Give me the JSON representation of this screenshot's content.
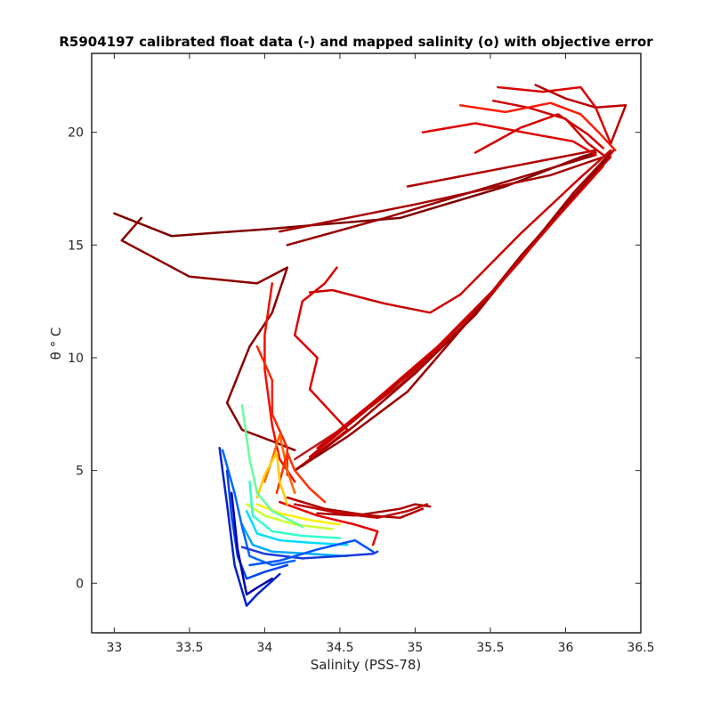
{
  "chart_data": {
    "type": "line",
    "title": "R5904197 calibrated float data (-) and mapped salinity (o) with objective error",
    "xlabel": "Salinity (PSS-78)",
    "ylabel": "θ ° C",
    "xlim": [
      32.85,
      36.5
    ],
    "ylim": [
      -2.2,
      23.5
    ],
    "xticks": [
      33,
      33.5,
      34,
      34.5,
      35,
      35.5,
      36,
      36.5
    ],
    "xtick_labels": [
      "33",
      "33.5",
      "34",
      "34.5",
      "35",
      "35.5",
      "36",
      "36.5"
    ],
    "yticks": [
      0,
      5,
      10,
      15,
      20
    ],
    "ytick_labels": [
      "0",
      "5",
      "10",
      "15",
      "20"
    ],
    "grid": false,
    "colormap": "jet",
    "series": [
      {
        "color": "#7f0000",
        "points": [
          [
            33.0,
            16.4
          ],
          [
            33.38,
            15.4
          ],
          [
            34.0,
            15.7
          ],
          [
            34.9,
            16.2
          ],
          [
            35.6,
            17.6
          ],
          [
            36.1,
            18.9
          ],
          [
            36.2,
            19.1
          ]
        ]
      },
      {
        "color": "#8b0000",
        "points": [
          [
            33.18,
            16.2
          ],
          [
            33.05,
            15.2
          ],
          [
            33.5,
            13.6
          ],
          [
            33.95,
            13.3
          ],
          [
            34.15,
            14.0
          ],
          [
            34.05,
            12.0
          ],
          [
            33.9,
            10.5
          ],
          [
            33.75,
            8.0
          ],
          [
            33.85,
            6.8
          ],
          [
            34.05,
            6.3
          ],
          [
            34.2,
            5.9
          ]
        ]
      },
      {
        "color": "#990000",
        "points": [
          [
            34.15,
            15.0
          ],
          [
            34.8,
            16.2
          ],
          [
            35.7,
            18.0
          ],
          [
            36.2,
            19.0
          ]
        ]
      },
      {
        "color": "#a50000",
        "points": [
          [
            34.1,
            15.6
          ],
          [
            35.0,
            16.8
          ],
          [
            35.9,
            18.1
          ],
          [
            36.25,
            18.9
          ]
        ]
      },
      {
        "color": "#b00000",
        "points": [
          [
            34.95,
            17.6
          ],
          [
            35.5,
            18.3
          ],
          [
            36.2,
            19.2
          ]
        ]
      },
      {
        "color": "#dd0000",
        "points": [
          [
            34.48,
            14.0
          ],
          [
            34.4,
            13.3
          ],
          [
            34.25,
            12.5
          ],
          [
            34.2,
            11.0
          ],
          [
            34.35,
            10.0
          ],
          [
            34.3,
            8.6
          ],
          [
            34.55,
            6.8
          ],
          [
            34.3,
            5.5
          ],
          [
            34.2,
            5.0
          ]
        ]
      },
      {
        "color": "#cc0000",
        "points": [
          [
            34.3,
            12.9
          ],
          [
            34.45,
            13.0
          ],
          [
            34.8,
            12.4
          ],
          [
            35.1,
            12.0
          ],
          [
            35.3,
            12.8
          ],
          [
            35.7,
            15.5
          ],
          [
            36.1,
            18.0
          ],
          [
            36.3,
            19.2
          ]
        ]
      },
      {
        "color": "#ee1100",
        "points": [
          [
            34.05,
            13.3
          ],
          [
            34.0,
            11.0
          ],
          [
            34.0,
            9.5
          ],
          [
            34.05,
            7.0
          ],
          [
            34.1,
            5.5
          ],
          [
            34.2,
            4.5
          ]
        ]
      },
      {
        "color": "#ff2200",
        "points": [
          [
            33.95,
            10.5
          ],
          [
            34.05,
            9.0
          ],
          [
            34.05,
            7.5
          ],
          [
            34.15,
            6.0
          ],
          [
            34.15,
            4.8
          ]
        ]
      },
      {
        "color": "#b71c1c",
        "points": [
          [
            34.2,
            5.5
          ],
          [
            34.5,
            6.8
          ],
          [
            34.9,
            8.8
          ],
          [
            35.3,
            11.3
          ],
          [
            35.7,
            14.3
          ],
          [
            36.0,
            16.8
          ],
          [
            36.3,
            18.9
          ]
        ]
      },
      {
        "color": "#a00000",
        "points": [
          [
            34.25,
            5.2
          ],
          [
            34.6,
            7.0
          ],
          [
            35.0,
            9.3
          ],
          [
            35.4,
            11.9
          ],
          [
            35.75,
            14.8
          ],
          [
            36.05,
            17.3
          ],
          [
            36.3,
            19.1
          ]
        ]
      },
      {
        "color": "#c00000",
        "points": [
          [
            34.3,
            5.6
          ],
          [
            34.7,
            7.8
          ],
          [
            35.1,
            10.1
          ],
          [
            35.5,
            12.8
          ],
          [
            35.85,
            15.5
          ],
          [
            36.2,
            18.2
          ],
          [
            36.32,
            19.2
          ]
        ]
      },
      {
        "color": "#9a0000",
        "points": [
          [
            34.2,
            5.0
          ],
          [
            34.55,
            6.5
          ],
          [
            34.95,
            8.5
          ],
          [
            35.35,
            11.6
          ],
          [
            35.7,
            14.5
          ],
          [
            36.1,
            17.5
          ],
          [
            36.28,
            18.9
          ]
        ]
      },
      {
        "color": "#d00000",
        "points": [
          [
            34.35,
            6.0
          ],
          [
            34.75,
            8.2
          ],
          [
            35.15,
            10.5
          ],
          [
            35.55,
            13.2
          ],
          [
            35.9,
            15.9
          ],
          [
            36.25,
            18.5
          ]
        ]
      },
      {
        "color": "#cc0000",
        "points": [
          [
            35.52,
            21.4
          ],
          [
            35.75,
            21.1
          ],
          [
            36.0,
            20.6
          ],
          [
            36.15,
            19.5
          ],
          [
            36.25,
            19.0
          ]
        ]
      },
      {
        "color": "#dd0000",
        "points": [
          [
            35.55,
            22.0
          ],
          [
            35.85,
            21.8
          ],
          [
            36.1,
            22.0
          ],
          [
            36.2,
            21.1
          ],
          [
            36.3,
            19.5
          ]
        ]
      },
      {
        "color": "#e00000",
        "points": [
          [
            35.05,
            20.0
          ],
          [
            35.4,
            20.4
          ],
          [
            35.8,
            19.9
          ],
          [
            36.05,
            19.6
          ],
          [
            36.2,
            19.0
          ]
        ]
      },
      {
        "color": "#bb0000",
        "points": [
          [
            35.8,
            22.1
          ],
          [
            36.0,
            21.5
          ],
          [
            36.2,
            21.1
          ],
          [
            36.4,
            21.2
          ],
          [
            36.3,
            19.5
          ]
        ]
      },
      {
        "color": "#ff1a00",
        "points": [
          [
            35.3,
            21.2
          ],
          [
            35.6,
            20.9
          ],
          [
            35.9,
            21.3
          ],
          [
            36.1,
            20.8
          ],
          [
            36.22,
            20.0
          ],
          [
            36.33,
            19.2
          ]
        ]
      },
      {
        "color": "#d50000",
        "points": [
          [
            35.4,
            19.1
          ],
          [
            35.7,
            20.2
          ],
          [
            35.95,
            20.8
          ],
          [
            36.15,
            19.9
          ],
          [
            36.25,
            19.3
          ]
        ]
      },
      {
        "color": "#a80000",
        "points": [
          [
            34.35,
            3.1
          ],
          [
            34.6,
            3.0
          ],
          [
            34.9,
            3.3
          ],
          [
            35.0,
            3.5
          ],
          [
            35.1,
            3.4
          ]
        ]
      },
      {
        "color": "#c00000",
        "points": [
          [
            34.2,
            3.5
          ],
          [
            34.5,
            3.1
          ],
          [
            34.75,
            2.9
          ],
          [
            34.95,
            3.2
          ],
          [
            35.08,
            3.5
          ]
        ]
      },
      {
        "color": "#b30000",
        "points": [
          [
            34.15,
            3.8
          ],
          [
            34.4,
            3.3
          ],
          [
            34.7,
            3.0
          ],
          [
            34.9,
            2.9
          ],
          [
            35.05,
            3.3
          ]
        ]
      },
      {
        "color": "#e60000",
        "points": [
          [
            34.1,
            3.6
          ],
          [
            34.35,
            3.0
          ],
          [
            34.6,
            2.6
          ],
          [
            34.75,
            2.3
          ],
          [
            34.72,
            1.7
          ]
        ]
      },
      {
        "color": "#ff6600",
        "points": [
          [
            34.0,
            4.5
          ],
          [
            34.05,
            5.5
          ],
          [
            34.1,
            6.6
          ],
          [
            34.15,
            5.0
          ],
          [
            34.2,
            4.0
          ]
        ]
      },
      {
        "color": "#ff3300",
        "points": [
          [
            34.08,
            4.0
          ],
          [
            34.15,
            5.8
          ],
          [
            34.2,
            5.0
          ],
          [
            34.3,
            4.2
          ],
          [
            34.4,
            3.6
          ]
        ]
      },
      {
        "color": "#ffcc00",
        "points": [
          [
            33.95,
            3.8
          ],
          [
            34.0,
            4.8
          ],
          [
            34.08,
            5.8
          ],
          [
            34.1,
            4.5
          ],
          [
            34.15,
            3.5
          ]
        ]
      },
      {
        "color": "#ffee00",
        "points": [
          [
            33.95,
            3.5
          ],
          [
            34.1,
            3.1
          ],
          [
            34.3,
            2.8
          ],
          [
            34.5,
            2.6
          ]
        ]
      },
      {
        "color": "#ccff33",
        "points": [
          [
            33.88,
            3.5
          ],
          [
            34.0,
            3.0
          ],
          [
            34.2,
            2.6
          ],
          [
            34.45,
            2.4
          ]
        ]
      },
      {
        "color": "#66ff99",
        "points": [
          [
            33.85,
            7.9
          ],
          [
            33.9,
            5.5
          ],
          [
            33.95,
            4.0
          ],
          [
            34.05,
            3.2
          ],
          [
            34.25,
            2.5
          ]
        ]
      },
      {
        "color": "#33ffcc",
        "points": [
          [
            33.9,
            4.5
          ],
          [
            33.92,
            3.0
          ],
          [
            34.05,
            2.3
          ],
          [
            34.25,
            2.1
          ],
          [
            34.5,
            2.0
          ]
        ]
      },
      {
        "color": "#00ddff",
        "points": [
          [
            33.88,
            3.2
          ],
          [
            33.95,
            2.2
          ],
          [
            34.1,
            1.9
          ],
          [
            34.3,
            1.8
          ],
          [
            34.55,
            1.7
          ]
        ]
      },
      {
        "color": "#00aaff",
        "points": [
          [
            33.85,
            2.6
          ],
          [
            33.92,
            1.7
          ],
          [
            34.05,
            1.4
          ],
          [
            34.3,
            1.3
          ],
          [
            34.55,
            1.2
          ]
        ]
      },
      {
        "color": "#0066ff",
        "points": [
          [
            33.72,
            5.9
          ],
          [
            33.8,
            4.0
          ],
          [
            33.85,
            2.5
          ],
          [
            33.9,
            1.2
          ],
          [
            34.05,
            0.8
          ],
          [
            34.2,
            1.0
          ]
        ]
      },
      {
        "color": "#0044ee",
        "points": [
          [
            33.75,
            5.0
          ],
          [
            33.78,
            3.0
          ],
          [
            33.82,
            1.2
          ],
          [
            33.88,
            0.2
          ],
          [
            34.0,
            0.5
          ],
          [
            34.15,
            0.8
          ]
        ]
      },
      {
        "color": "#0022cc",
        "points": [
          [
            33.7,
            6.0
          ],
          [
            33.75,
            3.5
          ],
          [
            33.8,
            0.8
          ],
          [
            33.88,
            -1.0
          ],
          [
            33.95,
            -0.5
          ],
          [
            34.1,
            0.4
          ]
        ]
      },
      {
        "color": "#0000aa",
        "points": [
          [
            33.78,
            4.0
          ],
          [
            33.82,
            1.5
          ],
          [
            33.88,
            -0.5
          ],
          [
            33.95,
            -0.2
          ],
          [
            34.05,
            0.2
          ]
        ]
      },
      {
        "color": "#1a3bd9",
        "points": [
          [
            33.85,
            1.6
          ],
          [
            34.0,
            1.3
          ],
          [
            34.25,
            1.1
          ],
          [
            34.5,
            1.2
          ],
          [
            34.72,
            1.3
          ],
          [
            34.75,
            1.4
          ]
        ]
      },
      {
        "color": "#0055ff",
        "points": [
          [
            33.9,
            0.8
          ],
          [
            34.1,
            1.0
          ],
          [
            34.35,
            1.5
          ],
          [
            34.6,
            1.9
          ],
          [
            34.72,
            1.4
          ]
        ]
      }
    ]
  }
}
